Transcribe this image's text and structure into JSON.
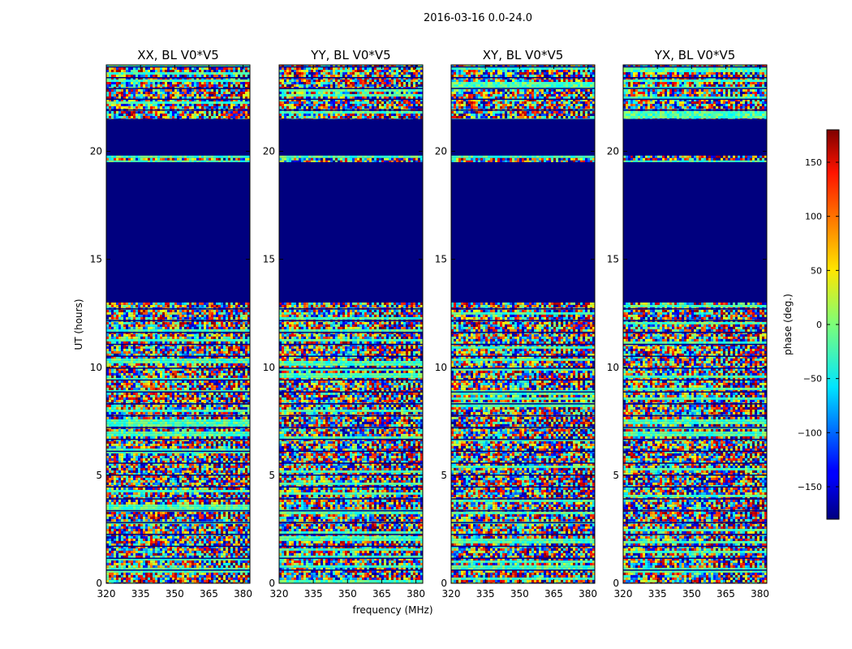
{
  "figure": {
    "suptitle": "2016-03-16 0.0-24.0",
    "xlabel": "frequency (MHz)",
    "ylabel": "UT (hours)"
  },
  "colorbar": {
    "label": "phase (deg.)",
    "min": -180,
    "max": 180,
    "ticks": [
      150,
      100,
      50,
      0,
      -50,
      -100,
      -150
    ],
    "tick_labels": [
      "150",
      "100",
      "50",
      "0",
      "−50",
      "−100",
      "−150"
    ]
  },
  "chart_data": [
    {
      "type": "heatmap",
      "title": "XX, BL V0*V5",
      "x_range_MHz": [
        320,
        383
      ],
      "y_range_hours": [
        0,
        24
      ],
      "x_ticks": [
        320,
        335,
        350,
        365,
        380
      ],
      "y_ticks": [
        0,
        5,
        10,
        15,
        20
      ],
      "colormap": "jet",
      "flagged_intervals_hours": [
        [
          13.0,
          19.5
        ],
        [
          19.8,
          21.5
        ]
      ],
      "data_intervals_hours": [
        [
          0,
          13.0
        ],
        [
          19.5,
          19.8
        ],
        [
          21.5,
          24.0
        ]
      ]
    },
    {
      "type": "heatmap",
      "title": "YY, BL V0*V5",
      "x_range_MHz": [
        320,
        383
      ],
      "y_range_hours": [
        0,
        24
      ],
      "x_ticks": [
        320,
        335,
        350,
        365,
        380
      ],
      "y_ticks": [
        0,
        5,
        10,
        15,
        20
      ],
      "colormap": "jet",
      "flagged_intervals_hours": [
        [
          13.0,
          19.5
        ],
        [
          19.8,
          21.5
        ]
      ],
      "data_intervals_hours": [
        [
          0,
          13.0
        ],
        [
          19.5,
          19.8
        ],
        [
          21.5,
          24.0
        ]
      ]
    },
    {
      "type": "heatmap",
      "title": "XY, BL V0*V5",
      "x_range_MHz": [
        320,
        383
      ],
      "y_range_hours": [
        0,
        24
      ],
      "x_ticks": [
        320,
        335,
        350,
        365,
        380
      ],
      "y_ticks": [
        0,
        5,
        10,
        15,
        20
      ],
      "colormap": "jet",
      "flagged_intervals_hours": [
        [
          13.0,
          19.5
        ],
        [
          19.8,
          21.5
        ]
      ],
      "data_intervals_hours": [
        [
          0,
          13.0
        ],
        [
          19.5,
          19.8
        ],
        [
          21.5,
          24.0
        ]
      ]
    },
    {
      "type": "heatmap",
      "title": "YX, BL V0*V5",
      "x_range_MHz": [
        320,
        383
      ],
      "y_range_hours": [
        0,
        24
      ],
      "x_ticks": [
        320,
        335,
        350,
        365,
        380
      ],
      "y_ticks": [
        0,
        5,
        10,
        15,
        20
      ],
      "colormap": "jet",
      "flagged_intervals_hours": [
        [
          13.0,
          19.5
        ],
        [
          19.8,
          21.5
        ]
      ],
      "data_intervals_hours": [
        [
          0,
          13.0
        ],
        [
          19.5,
          19.8
        ],
        [
          21.5,
          24.0
        ]
      ]
    }
  ]
}
